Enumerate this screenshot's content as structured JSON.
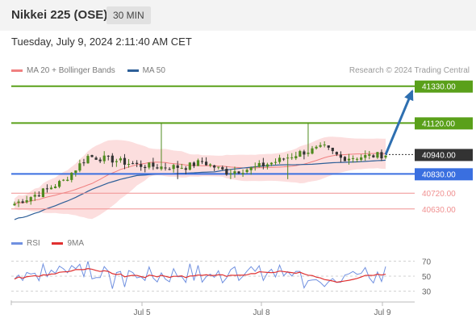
{
  "header": {
    "title": "Nikkei 225 (OSE)",
    "timeframe": "30 MIN",
    "timestamp": "Tuesday, July 9, 2024 2:11:40 AM CET"
  },
  "legend": {
    "ma20_label": "MA 20 + Bollinger Bands",
    "ma50_label": "MA 50",
    "credit": "Research © 2024 Trading Central"
  },
  "rsi_legend": {
    "rsi_label": "RSI",
    "ma9_label": "9MA"
  },
  "colors": {
    "resistance": "#5aa01a",
    "support": "#3a6fe0",
    "support_minor": "#f09090",
    "current": "#333333",
    "bull_candle": "#4f8a1e",
    "bear_candle": "#333333",
    "ma20": "#f08080",
    "bollinger_fill": "#fbd6d6",
    "ma50": "#2e5f98",
    "arrow": "#2e6fb0",
    "rsi": "#7090e0",
    "ma9": "#e03030"
  },
  "chart_data": [
    {
      "type": "candlestick",
      "title": "Nikkei 225 (OSE)",
      "x_ticks": [
        "Jul 5",
        "Jul 8",
        "Jul 9"
      ],
      "ylim": [
        40560,
        41370
      ],
      "levels": [
        {
          "label": "41330.00",
          "value": 41330,
          "kind": "resistance"
        },
        {
          "label": "41120.00",
          "value": 41120,
          "kind": "resistance"
        },
        {
          "label": "40940.00",
          "value": 40940,
          "kind": "current"
        },
        {
          "label": "40830.00",
          "value": 40830,
          "kind": "support"
        },
        {
          "label": "40720.00",
          "value": 40720,
          "kind": "support-minor"
        },
        {
          "label": "40630.00",
          "value": 40630,
          "kind": "support-minor"
        }
      ],
      "forecast_arrow": {
        "from": 40940,
        "to": 41330
      },
      "series": [
        {
          "name": "MA 20 + Bollinger Bands",
          "type": "line"
        },
        {
          "name": "MA 50",
          "type": "line"
        }
      ]
    },
    {
      "type": "line",
      "title": "RSI",
      "ylim": [
        20,
        80
      ],
      "y_ticks": [
        70,
        50,
        30
      ],
      "series": [
        {
          "name": "RSI"
        },
        {
          "name": "9MA"
        }
      ]
    }
  ]
}
